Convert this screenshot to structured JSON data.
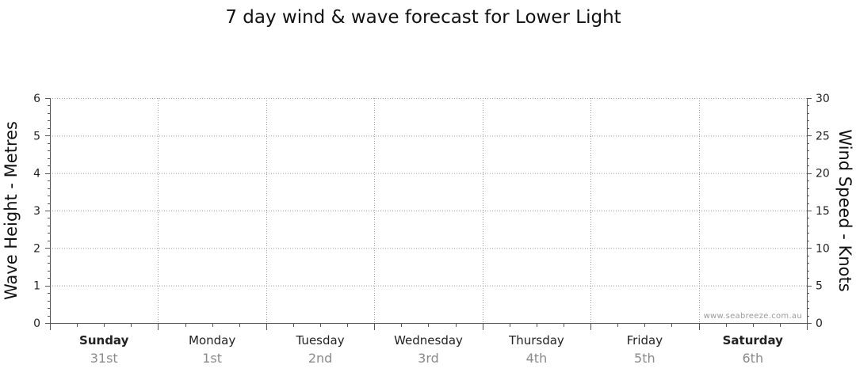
{
  "chart_data": {
    "type": "line",
    "title": "7 day wind & wave forecast for Lower Light",
    "left_axis": {
      "label": "Wave Height - Metres",
      "ylim": [
        0,
        6
      ],
      "ticks": [
        0,
        1,
        2,
        3,
        4,
        5,
        6
      ]
    },
    "right_axis": {
      "label": "Wind Speed - Knots",
      "ylim": [
        0,
        30
      ],
      "ticks": [
        0,
        5,
        10,
        15,
        20,
        25,
        30
      ]
    },
    "categories": [
      {
        "day": "Sunday",
        "date": "31st",
        "bold": true
      },
      {
        "day": "Monday",
        "date": "1st",
        "bold": false
      },
      {
        "day": "Tuesday",
        "date": "2nd",
        "bold": false
      },
      {
        "day": "Wednesday",
        "date": "3rd",
        "bold": false
      },
      {
        "day": "Thursday",
        "date": "4th",
        "bold": false
      },
      {
        "day": "Friday",
        "date": "5th",
        "bold": false
      },
      {
        "day": "Saturday",
        "date": "6th",
        "bold": true
      }
    ],
    "series": [],
    "grid": true,
    "watermark": "www.seabreeze.com.au"
  }
}
